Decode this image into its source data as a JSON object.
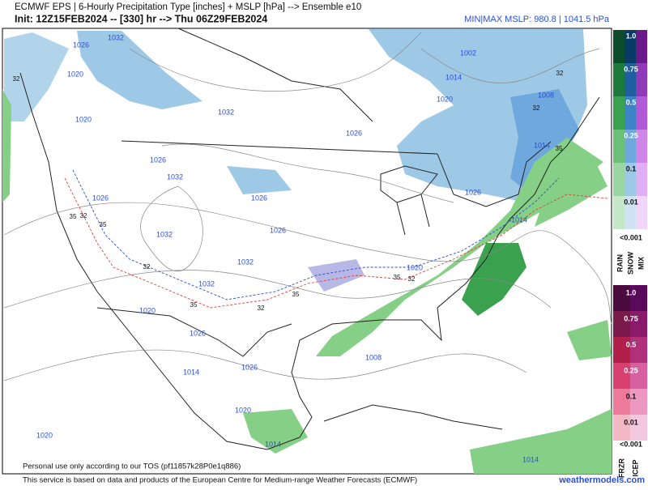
{
  "header": {
    "title": "ECMWF EPS | 6-Hourly Precipitation Type [inches] + MSLP [hPa] --> Ensemble e10",
    "init": "Init: 12Z15FEB2024 -- [330] hr --> Thu 06Z29FEB2024",
    "mslp_range": "MIN|MAX MSLP: 980.8 | 1041.5 hPa"
  },
  "map": {
    "isobar_labels": [
      "1032",
      "1026",
      "1020",
      "1020",
      "1032",
      "1026",
      "1002",
      "1014",
      "1020",
      "1008",
      "1014",
      "1026",
      "1032",
      "1026",
      "1026",
      "1026",
      "1014",
      "1026",
      "1032",
      "1032",
      "1032",
      "1020",
      "1020",
      "1026",
      "1008",
      "1014",
      "1026",
      "1020",
      "1014",
      "1020",
      "1014"
    ],
    "freezing_labels": [
      "32",
      "32",
      "32",
      "35",
      "35",
      "32",
      "35",
      "32",
      "35",
      "32",
      "35",
      "35",
      "32"
    ]
  },
  "legend": {
    "rain_snow_mix": {
      "levels": [
        "1.0",
        "0.75",
        "0.5",
        "0.25",
        "0.1",
        "0.01"
      ],
      "min": "<0.001",
      "types": [
        "RAIN",
        "SNOW",
        "MIX"
      ]
    },
    "frzr_icep": {
      "levels": [
        "1.0",
        "0.75",
        "0.5",
        "0.25",
        "0.1",
        "0.01"
      ],
      "min": "<0.001",
      "types": [
        "FRZR",
        "ICEP"
      ]
    }
  },
  "footer": {
    "tos": "Personal use only according to our TOS (pf11857k28P0e1q886)",
    "attribution": "This service is based on data and products of the European Centre for Medium-range Weather Forecasts (ECMWF)",
    "site": "weathermodels.com"
  }
}
